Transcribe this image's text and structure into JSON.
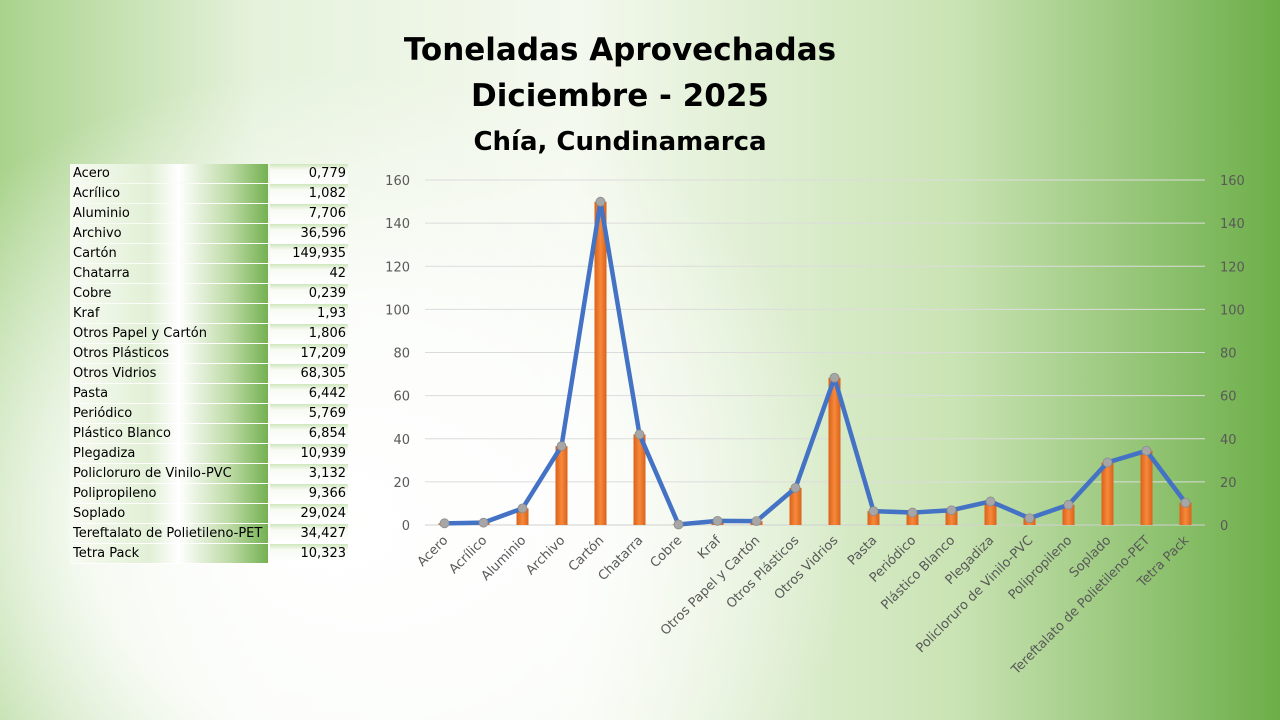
{
  "title_lines": [
    "Toneladas Aprovechadas",
    "Diciembre - 2025",
    "Chía, Cundinamarca"
  ],
  "colors": {
    "bar": "#f07a27",
    "line": "#4472c4",
    "marker": "#a6a6a6"
  },
  "table": [
    [
      "Acero",
      "0,779"
    ],
    [
      "Acrílico",
      "1,082"
    ],
    [
      "Aluminio",
      "7,706"
    ],
    [
      "Archivo",
      "36,596"
    ],
    [
      "Cartón",
      "149,935"
    ],
    [
      "Chatarra",
      "42"
    ],
    [
      "Cobre",
      "0,239"
    ],
    [
      "Kraf",
      "1,93"
    ],
    [
      "Otros Papel y Cartón",
      "1,806"
    ],
    [
      "Otros Plásticos",
      "17,209"
    ],
    [
      "Otros Vidrios",
      "68,305"
    ],
    [
      "Pasta",
      "6,442"
    ],
    [
      "Periódico",
      "5,769"
    ],
    [
      "Plástico Blanco",
      "6,854"
    ],
    [
      "Plegadiza",
      "10,939"
    ],
    [
      "Policloruro de Vinilo-PVC",
      "3,132"
    ],
    [
      "Polipropileno",
      "9,366"
    ],
    [
      "Soplado",
      "29,024"
    ],
    [
      "Tereftalato de Polietileno-PET",
      "34,427"
    ],
    [
      "Tetra Pack",
      "10,323"
    ]
  ],
  "chart_data": {
    "type": "bar+line",
    "categories": [
      "Acero",
      "Acrílico",
      "Aluminio",
      "Archivo",
      "Cartón",
      "Chatarra",
      "Cobre",
      "Kraf",
      "Otros Papel y Cartón",
      "Otros Plásticos",
      "Otros Vidrios",
      "Pasta",
      "Periódico",
      "Plástico Blanco",
      "Plegadiza",
      "Policloruro de Vinilo-PVC",
      "Polipropileno",
      "Soplado",
      "Tereftalato de Polietileno-PET",
      "Tetra Pack"
    ],
    "values": [
      0.779,
      1.082,
      7.706,
      36.596,
      149.935,
      42,
      0.239,
      1.93,
      1.806,
      17.209,
      68.305,
      6.442,
      5.769,
      6.854,
      10.939,
      3.132,
      9.366,
      29.024,
      34.427,
      10.323
    ],
    "ylim": [
      0,
      160
    ],
    "yticks": [
      0,
      20,
      40,
      60,
      80,
      100,
      120,
      140,
      160
    ],
    "secondary_axis": true,
    "grid": true,
    "legend": "none"
  }
}
